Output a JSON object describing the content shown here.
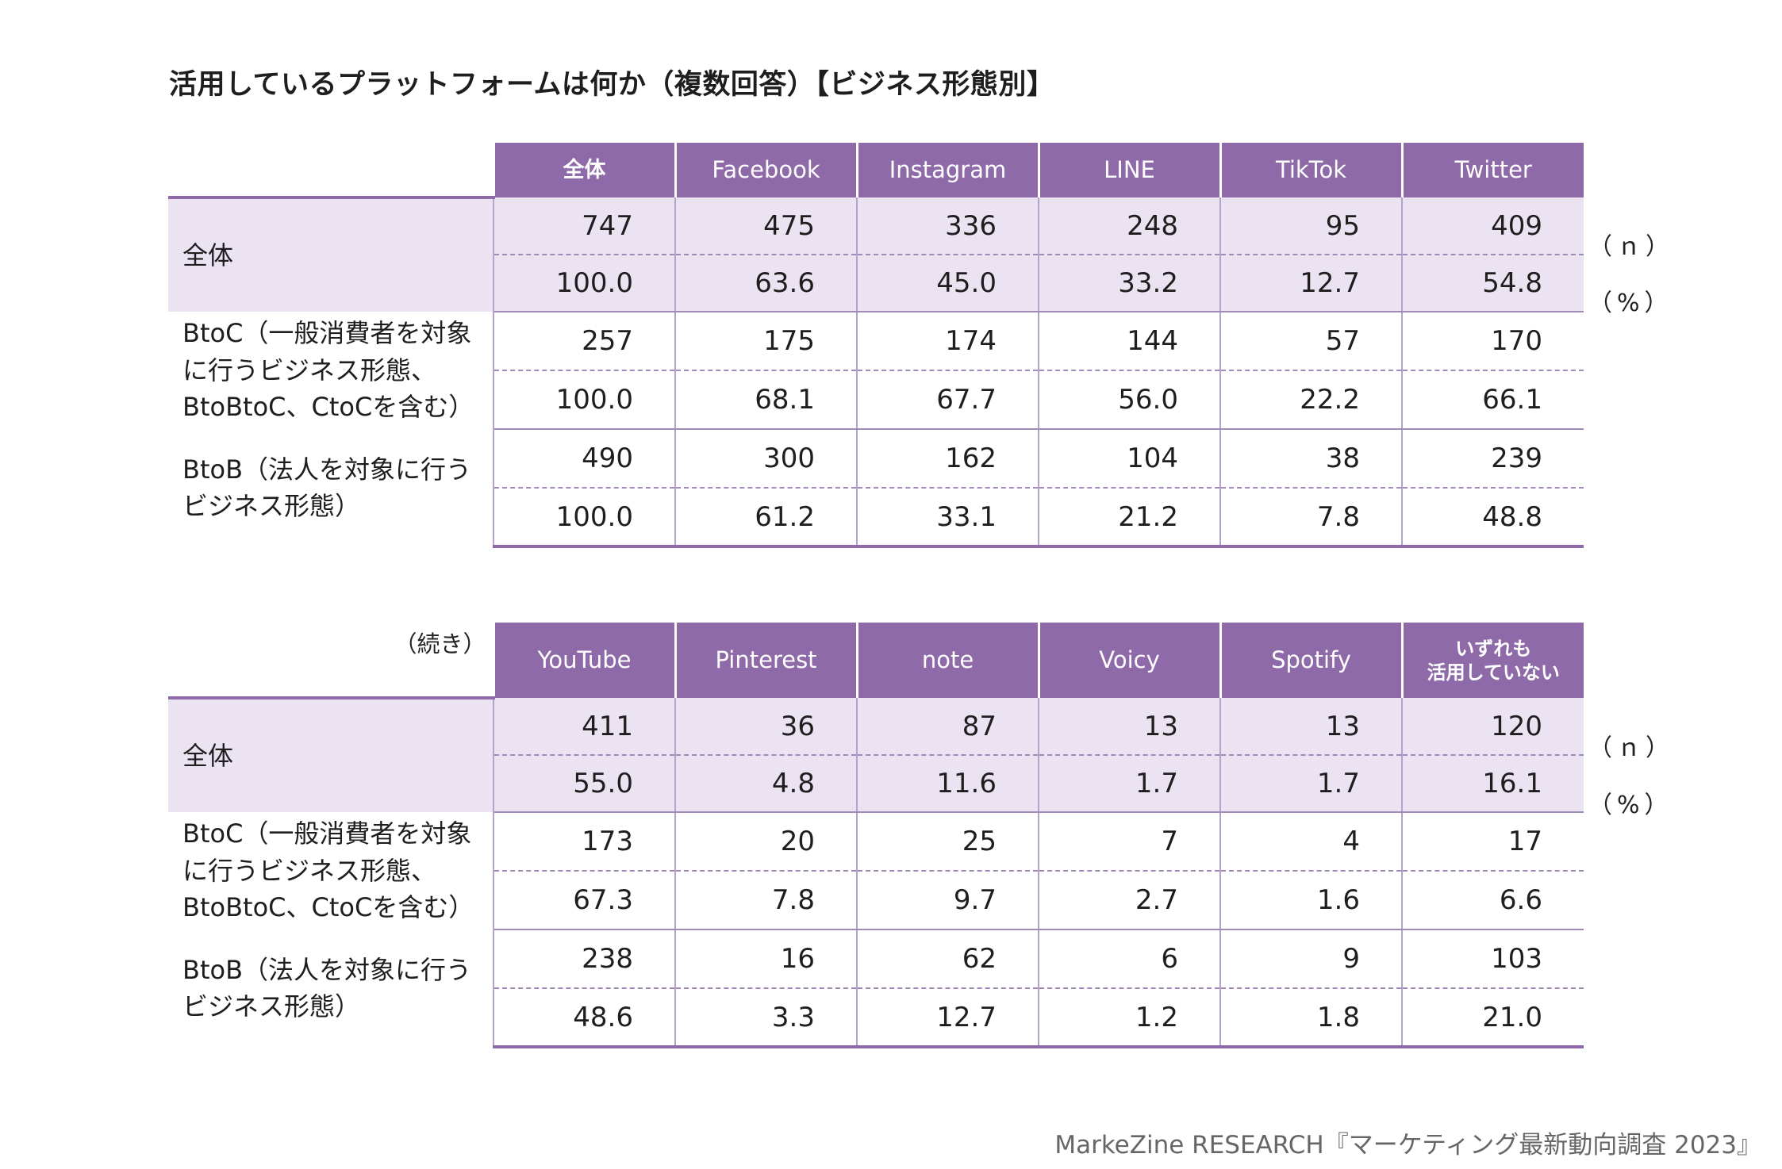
{
  "title": "活用しているプラットフォームは何か（複数回答）【ビジネス形態別】",
  "source": "MarkeZine RESEARCH『マーケティング最新動向調査 2023』",
  "units": {
    "n": "（ｎ）",
    "pct": "（%）"
  },
  "colors": {
    "header": "#8e6aa9",
    "shade": "#ebe2f2",
    "line": "#a08ab8"
  },
  "chart_data": [
    {
      "type": "table",
      "columns": [
        "全体",
        "Facebook",
        "Instagram",
        "LINE",
        "TikTok",
        "Twitter"
      ],
      "rows": [
        {
          "label": "全体",
          "n": [
            "747",
            "475",
            "336",
            "248",
            "95",
            "409"
          ],
          "pct": [
            "100.0",
            "63.6",
            "45.0",
            "33.2",
            "12.7",
            "54.8"
          ]
        },
        {
          "label": "BtoC（一般消費者を対象\nに行うビジネス形態、\nBtoBtoC、CtoCを含む）",
          "n": [
            "257",
            "175",
            "174",
            "144",
            "57",
            "170"
          ],
          "pct": [
            "100.0",
            "68.1",
            "67.7",
            "56.0",
            "22.2",
            "66.1"
          ]
        },
        {
          "label": "BtoB（法人を対象に行う\nビジネス形態）",
          "n": [
            "490",
            "300",
            "162",
            "104",
            "38",
            "239"
          ],
          "pct": [
            "100.0",
            "61.2",
            "33.1",
            "21.2",
            "7.8",
            "48.8"
          ]
        }
      ]
    },
    {
      "type": "table",
      "continued_label": "（続き）",
      "columns": [
        "YouTube",
        "Pinterest",
        "note",
        "Voicy",
        "Spotify",
        "いずれも\n活用していない"
      ],
      "rows": [
        {
          "label": "全体",
          "n": [
            "411",
            "36",
            "87",
            "13",
            "13",
            "120"
          ],
          "pct": [
            "55.0",
            "4.8",
            "11.6",
            "1.7",
            "1.7",
            "16.1"
          ]
        },
        {
          "label": "BtoC（一般消費者を対象\nに行うビジネス形態、\nBtoBtoC、CtoCを含む）",
          "n": [
            "173",
            "20",
            "25",
            "7",
            "4",
            "17"
          ],
          "pct": [
            "67.3",
            "7.8",
            "9.7",
            "2.7",
            "1.6",
            "6.6"
          ]
        },
        {
          "label": "BtoB（法人を対象に行う\nビジネス形態）",
          "n": [
            "238",
            "16",
            "62",
            "6",
            "9",
            "103"
          ],
          "pct": [
            "48.6",
            "3.3",
            "12.7",
            "1.2",
            "1.8",
            "21.0"
          ]
        }
      ]
    }
  ]
}
